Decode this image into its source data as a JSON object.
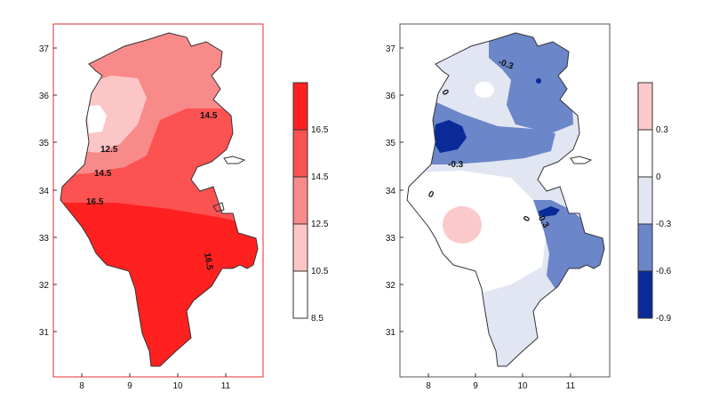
{
  "left_map": {
    "y_ticks": [
      "37",
      "36",
      "35",
      "34",
      "33",
      "32",
      "31"
    ],
    "x_ticks": [
      "8",
      "9",
      "10",
      "11"
    ],
    "contour_labels": [
      "12.5",
      "14.5",
      "14.5",
      "16.5",
      "16.5"
    ],
    "colorbar": {
      "ticks": [
        "16.5",
        "14.5",
        "12.5",
        "10.5",
        "8.5"
      ],
      "colors": [
        "#ff2020",
        "#fd5252",
        "#f98a8a",
        "#fcc6c6",
        "#ffffff"
      ]
    }
  },
  "right_map": {
    "y_ticks": [
      "37",
      "36",
      "35",
      "34",
      "33",
      "32",
      "31"
    ],
    "x_ticks": [
      "8",
      "9",
      "10",
      "11"
    ],
    "contour_labels": [
      "-0.3",
      "0",
      "-0.3",
      "0",
      "0",
      "-0.3"
    ],
    "colorbar": {
      "ticks": [
        "0.3",
        "0",
        "-0.3",
        "-0.6",
        "-0.9"
      ],
      "colors": [
        "#fbc9c9",
        "#ffffff",
        "#e2e6f2",
        "#6b86c9",
        "#0a2a9a"
      ]
    }
  }
}
